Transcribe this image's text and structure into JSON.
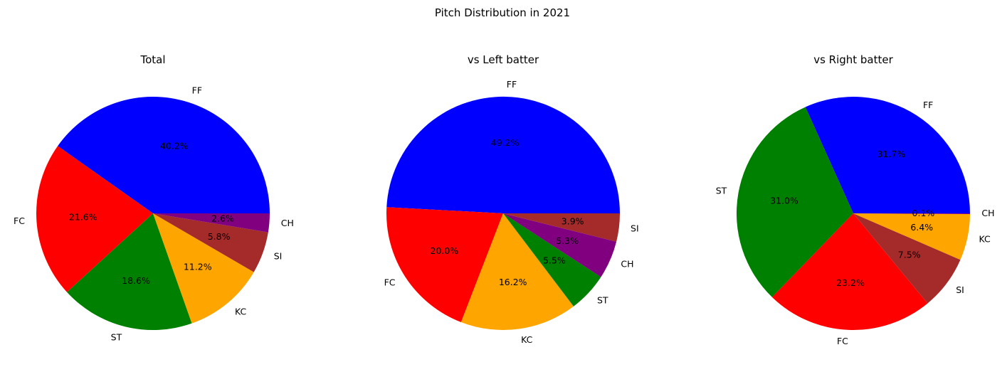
{
  "figure": {
    "suptitle": "Pitch Distribution in 2021"
  },
  "chart_data": [
    {
      "type": "pie",
      "title": "Total",
      "labels": [
        "FF",
        "FC",
        "ST",
        "KC",
        "SI",
        "CH"
      ],
      "values": [
        40.2,
        21.6,
        18.6,
        11.2,
        5.8,
        2.6
      ],
      "pct_labels": [
        "40.2%",
        "21.6%",
        "18.6%",
        "11.2%",
        "5.8%",
        "2.6%"
      ],
      "colors": [
        "#0000ff",
        "#ff0000",
        "#008000",
        "#ffa500",
        "#a52a2a",
        "#800080"
      ],
      "start_angle_deg": 0,
      "direction": "counterclockwise"
    },
    {
      "type": "pie",
      "title": "vs Left batter",
      "labels": [
        "FF",
        "FC",
        "KC",
        "ST",
        "CH",
        "SI"
      ],
      "values": [
        49.2,
        20.0,
        16.2,
        5.5,
        5.3,
        3.9
      ],
      "pct_labels": [
        "49.2%",
        "20.0%",
        "16.2%",
        "5.5%",
        "5.3%",
        "3.9%"
      ],
      "colors": [
        "#0000ff",
        "#ff0000",
        "#ffa500",
        "#008000",
        "#800080",
        "#a52a2a"
      ],
      "start_angle_deg": 0,
      "direction": "counterclockwise"
    },
    {
      "type": "pie",
      "title": "vs Right batter",
      "labels": [
        "FF",
        "ST",
        "FC",
        "SI",
        "KC",
        "CH"
      ],
      "values": [
        31.7,
        31.0,
        23.2,
        7.5,
        6.4,
        0.1
      ],
      "pct_labels": [
        "31.7%",
        "31.0%",
        "23.2%",
        "7.5%",
        "6.4%",
        "0.1%"
      ],
      "colors": [
        "#0000ff",
        "#008000",
        "#ff0000",
        "#a52a2a",
        "#ffa500",
        "#800080"
      ],
      "start_angle_deg": 0,
      "direction": "counterclockwise"
    }
  ]
}
